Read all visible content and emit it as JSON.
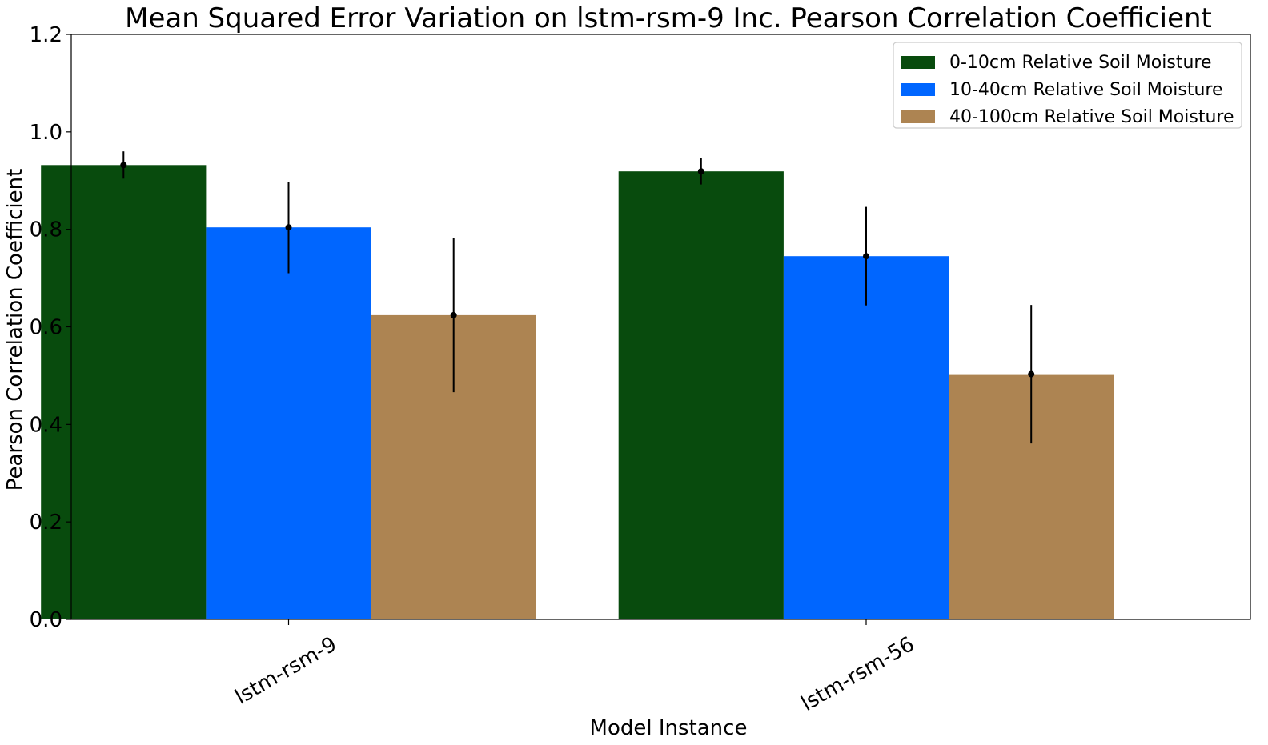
{
  "chart_data": {
    "type": "bar",
    "title": "Mean Squared Error Variation on lstm-rsm-9 Inc. Pearson Correlation Coefficient",
    "xlabel": "Model Instance",
    "ylabel": "Pearson Correlation Coefficient",
    "ylim": [
      0,
      1.2
    ],
    "yticks": [
      "0.0",
      "0.2",
      "0.4",
      "0.6",
      "0.8",
      "1.0",
      "1.2"
    ],
    "ytick_values": [
      0,
      0.2,
      0.4,
      0.6,
      0.8,
      1.0,
      1.2
    ],
    "categories": [
      "lstm-rsm-9",
      "lstm-rsm-56"
    ],
    "series": [
      {
        "name": "0-10cm Relative Soil Moisture",
        "color": "#084b0d",
        "values": [
          0.932,
          0.919
        ],
        "errors": [
          0.028,
          0.027
        ]
      },
      {
        "name": "10-40cm Relative Soil Moisture",
        "color": "#0066ff",
        "values": [
          0.804,
          0.745
        ],
        "errors": [
          0.094,
          0.101
        ]
      },
      {
        "name": "40-100cm Relative Soil Moisture",
        "color": "#ad8452",
        "values": [
          0.624,
          0.503
        ],
        "errors": [
          0.158,
          0.142
        ]
      }
    ],
    "legend_position": "top-right",
    "grid": false
  }
}
